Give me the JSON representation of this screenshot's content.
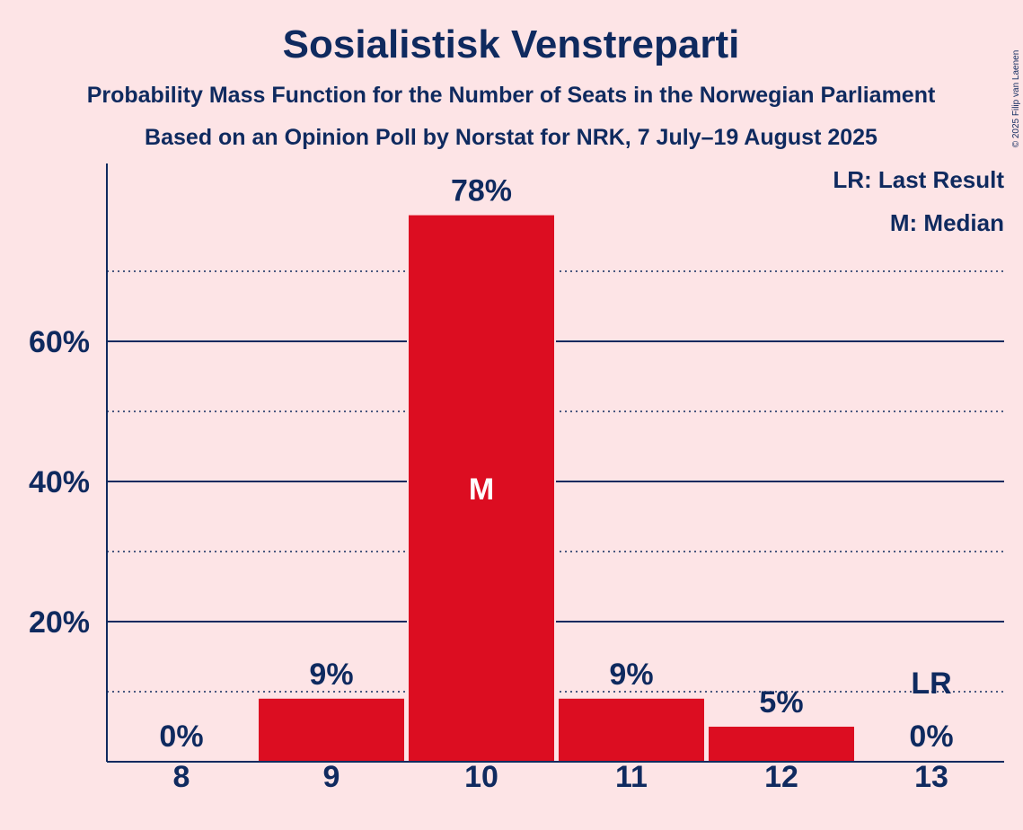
{
  "title": "Sosialistisk Venstreparti",
  "subtitle_1": "Probability Mass Function for the Number of Seats in the Norwegian Parliament",
  "subtitle_2": "Based on an Opinion Poll by Norstat for NRK, 7 July–19 August 2025",
  "copyright": "© 2025 Filip van Laenen",
  "legend": {
    "lr": "LR: Last Result",
    "median": "M: Median"
  },
  "colors": {
    "background": "#fde4e6",
    "bar": "#dc0d21",
    "text": "#0f2a5f"
  },
  "chart_data": {
    "type": "bar",
    "categories": [
      "8",
      "9",
      "10",
      "11",
      "12",
      "13"
    ],
    "values": [
      0,
      9,
      78,
      9,
      5,
      0
    ],
    "value_labels": [
      "0%",
      "9%",
      "78%",
      "9%",
      "5%",
      "0%"
    ],
    "ylim": [
      0,
      85
    ],
    "y_ticks": [
      20,
      40,
      60
    ],
    "y_tick_labels": [
      "20%",
      "40%",
      "60%"
    ],
    "minor_gridlines": [
      10,
      30,
      50,
      70
    ],
    "grid": true,
    "legend_position": "top-right",
    "median_category": "10",
    "median_marker": "M",
    "last_result_category": "13",
    "last_result_marker": "LR"
  }
}
